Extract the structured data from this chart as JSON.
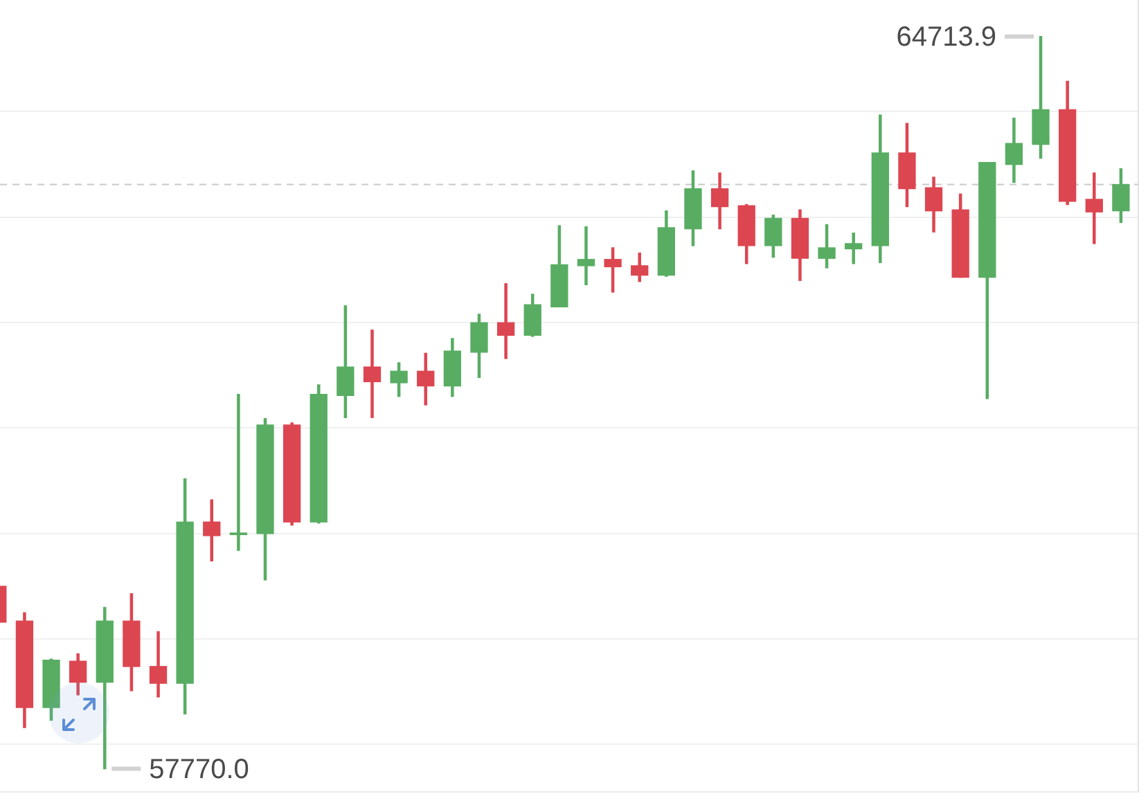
{
  "chart_data": {
    "type": "candlestick",
    "categories": [
      null,
      null,
      null,
      null,
      null,
      null,
      null,
      null,
      null,
      null,
      null,
      null,
      null,
      null,
      null,
      null,
      null,
      null,
      null,
      null,
      null,
      null,
      null,
      null,
      null,
      null,
      null,
      null,
      null,
      null,
      null,
      null,
      null,
      null,
      null,
      null,
      null,
      null,
      null,
      null,
      null,
      null,
      null
    ],
    "ohlc": [
      [
        59500,
        59500,
        59160,
        59160
      ],
      [
        59170,
        59250,
        58160,
        58350
      ],
      [
        58350,
        58810,
        58230,
        58800
      ],
      [
        58790,
        58860,
        58470,
        58590
      ],
      [
        58590,
        59300,
        57770.0,
        59170
      ],
      [
        59170,
        59430,
        58510,
        58740
      ],
      [
        58740,
        59070,
        58450,
        58580
      ],
      [
        58580,
        60520,
        58290,
        60110
      ],
      [
        60110,
        60320,
        59740,
        59980
      ],
      [
        59990,
        61320,
        59840,
        60000
      ],
      [
        60000,
        61090,
        59560,
        61030
      ],
      [
        61030,
        61050,
        60080,
        60110
      ],
      [
        60110,
        61410,
        60100,
        61320
      ],
      [
        61310,
        62160,
        61100,
        61580
      ],
      [
        61580,
        61930,
        61100,
        61440
      ],
      [
        61430,
        61620,
        61300,
        61540
      ],
      [
        61540,
        61710,
        61220,
        61400
      ],
      [
        61400,
        61850,
        61300,
        61730
      ],
      [
        61720,
        62080,
        61480,
        62000
      ],
      [
        62000,
        62370,
        61660,
        61880
      ],
      [
        61880,
        62270,
        61870,
        62170
      ],
      [
        62150,
        62920,
        62150,
        62550
      ],
      [
        62540,
        62910,
        62360,
        62600
      ],
      [
        62600,
        62710,
        62290,
        62530
      ],
      [
        62540,
        62660,
        62390,
        62450
      ],
      [
        62450,
        63060,
        62440,
        62900
      ],
      [
        62890,
        63440,
        62730,
        63270
      ],
      [
        63270,
        63420,
        62890,
        63100
      ],
      [
        63110,
        63120,
        62560,
        62730
      ],
      [
        62730,
        63020,
        62620,
        62990
      ],
      [
        62990,
        63070,
        62400,
        62610
      ],
      [
        62610,
        62930,
        62520,
        62710
      ],
      [
        62700,
        62850,
        62560,
        62750
      ],
      [
        62730,
        63970,
        62570,
        63610
      ],
      [
        63610,
        63890,
        63100,
        63270
      ],
      [
        63280,
        63380,
        62860,
        63060
      ],
      [
        63070,
        63220,
        62430,
        62430
      ],
      [
        62430,
        63520,
        61280,
        63520
      ],
      [
        63500,
        63940,
        63330,
        63700
      ],
      [
        63690,
        64713.9,
        63560,
        64020
      ],
      [
        64020,
        64290,
        63120,
        63150
      ],
      [
        63170,
        63420,
        62750,
        63050
      ],
      [
        63060,
        63460,
        62950,
        63310
      ]
    ],
    "colors": [
      "#dc4651",
      "#dc4651",
      "#58ad63",
      "#dc4651",
      "#58ad63",
      "#dc4651",
      "#dc4651",
      "#58ad63",
      "#dc4651",
      "#58ad63",
      "#58ad63",
      "#dc4651",
      "#58ad63",
      "#58ad63",
      "#dc4651",
      "#58ad63",
      "#dc4651",
      "#58ad63",
      "#58ad63",
      "#dc4651",
      "#58ad63",
      "#58ad63",
      "#58ad63",
      "#dc4651",
      "#dc4651",
      "#58ad63",
      "#58ad63",
      "#dc4651",
      "#dc4651",
      "#58ad63",
      "#dc4651",
      "#58ad63",
      "#58ad63",
      "#58ad63",
      "#dc4651",
      "#dc4651",
      "#dc4651",
      "#58ad63",
      "#58ad63",
      "#58ad63",
      "#dc4651",
      "#dc4651",
      "#58ad63"
    ],
    "ylim": [
      57550,
      65060
    ],
    "yticks": [
      {
        "value": 58000,
        "label": null
      },
      {
        "value": 59000,
        "label": null
      },
      {
        "value": 60000,
        "label": null
      },
      {
        "value": 61000,
        "label": null
      },
      {
        "value": 62000,
        "label": null
      },
      {
        "value": 63000,
        "label": null
      },
      {
        "value": 64000,
        "label": null
      }
    ],
    "tick_labels": false,
    "grid": "y",
    "ref_lines": [
      {
        "axis": "y",
        "value": 63310,
        "color": "#c8c8c8",
        "line_style": "dashed"
      }
    ],
    "annotations": [
      "64713.9",
      "57770.0"
    ]
  }
}
